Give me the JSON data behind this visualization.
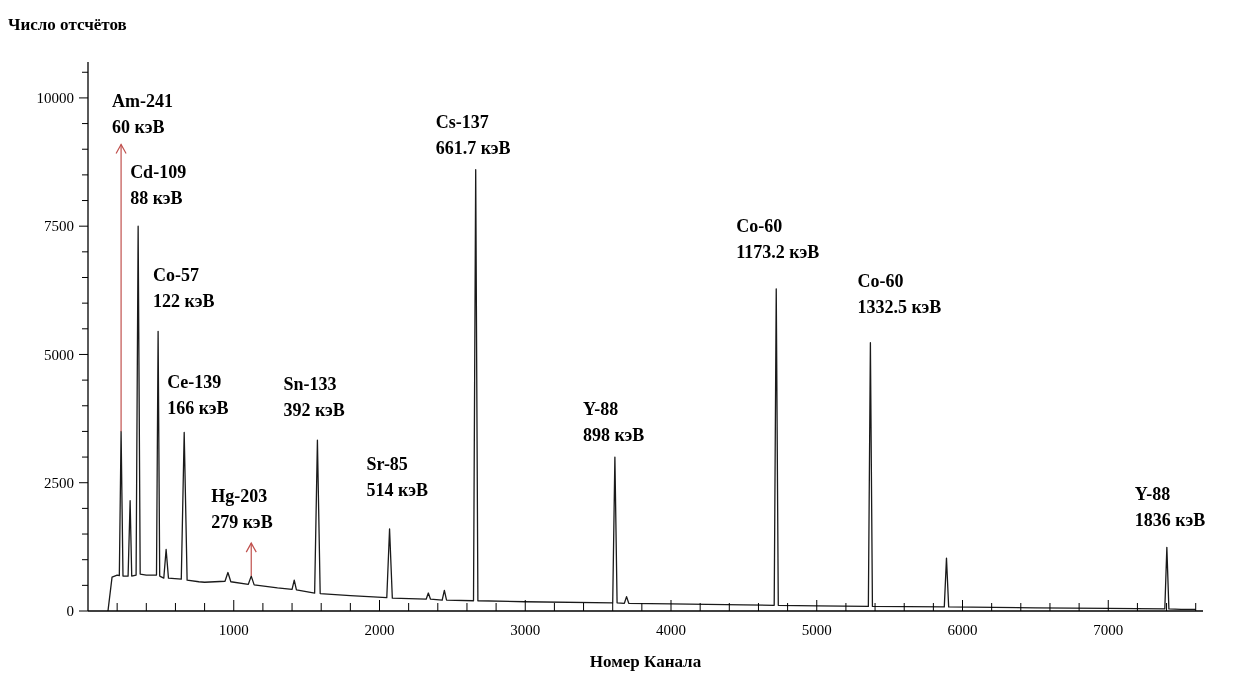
{
  "chart_data": {
    "type": "line",
    "ylabel": "Число отсчётов",
    "xlabel": "Номер Канала",
    "color": "#1a1a1a",
    "marker": "none",
    "line_style": "solid",
    "grid": false,
    "xlim": [
      0,
      7650
    ],
    "ylim": [
      0,
      10700
    ],
    "x": [
      137,
      165,
      200,
      215,
      227,
      240,
      275,
      289,
      300,
      330,
      344,
      358,
      400,
      470,
      481,
      492,
      520,
      536,
      552,
      640,
      660,
      680,
      760,
      800,
      940,
      960,
      980,
      1100,
      1120,
      1140,
      1300,
      1400,
      1415,
      1430,
      1555,
      1574,
      1593,
      1800,
      2050,
      2069,
      2088,
      2320,
      2335,
      2350,
      2430,
      2445,
      2460,
      2645,
      2660,
      2675,
      3000,
      3600,
      3615,
      3630,
      3680,
      3695,
      3710,
      4000,
      4500,
      4708,
      4722,
      4736,
      5000,
      5354,
      5368,
      5382,
      5875,
      5890,
      5905,
      6500,
      7000,
      7388,
      7402,
      7416,
      7500,
      7600
    ],
    "values": [
      0,
      660,
      700,
      690,
      3500,
      680,
      680,
      2150,
      680,
      700,
      7500,
      720,
      700,
      700,
      5450,
      680,
      640,
      1200,
      640,
      620,
      3480,
      600,
      570,
      560,
      580,
      750,
      570,
      520,
      680,
      510,
      450,
      420,
      600,
      410,
      350,
      3330,
      340,
      300,
      260,
      1600,
      250,
      230,
      350,
      230,
      210,
      400,
      210,
      200,
      8600,
      200,
      180,
      160,
      3000,
      160,
      150,
      280,
      150,
      140,
      120,
      110,
      6280,
      110,
      100,
      90,
      5230,
      90,
      80,
      1030,
      80,
      60,
      50,
      40,
      1240,
      40,
      30,
      30
    ],
    "xticks": [
      {
        "value": 200,
        "label": null
      },
      {
        "value": 400,
        "label": null
      },
      {
        "value": 600,
        "label": null
      },
      {
        "value": 800,
        "label": null
      },
      1000,
      {
        "value": 1200,
        "label": null
      },
      {
        "value": 1400,
        "label": null
      },
      {
        "value": 1600,
        "label": null
      },
      {
        "value": 1800,
        "label": null
      },
      2000,
      {
        "value": 2200,
        "label": null
      },
      {
        "value": 2400,
        "label": null
      },
      {
        "value": 2600,
        "label": null
      },
      {
        "value": 2800,
        "label": null
      },
      3000,
      {
        "value": 3200,
        "label": null
      },
      {
        "value": 3400,
        "label": null
      },
      {
        "value": 3600,
        "label": null
      },
      {
        "value": 3800,
        "label": null
      },
      4000,
      {
        "value": 4200,
        "label": null
      },
      {
        "value": 4400,
        "label": null
      },
      {
        "value": 4600,
        "label": null
      },
      {
        "value": 4800,
        "label": null
      },
      5000,
      {
        "value": 5200,
        "label": null
      },
      {
        "value": 5400,
        "label": null
      },
      {
        "value": 5600,
        "label": null
      },
      {
        "value": 5800,
        "label": null
      },
      6000,
      {
        "value": 6200,
        "label": null
      },
      {
        "value": 6400,
        "label": null
      },
      {
        "value": 6600,
        "label": null
      },
      {
        "value": 6800,
        "label": null
      },
      7000,
      {
        "value": 7200,
        "label": null
      },
      {
        "value": 7400,
        "label": null
      },
      {
        "value": 7600,
        "label": null
      }
    ],
    "yticks": [
      0,
      {
        "value": 500,
        "label": null
      },
      {
        "value": 1000,
        "label": null
      },
      {
        "value": 1500,
        "label": null
      },
      {
        "value": 2000,
        "label": null
      },
      2500,
      {
        "value": 3000,
        "label": null
      },
      {
        "value": 3500,
        "label": null
      },
      {
        "value": 4000,
        "label": null
      },
      {
        "value": 4500,
        "label": null
      },
      5000,
      {
        "value": 5500,
        "label": null
      },
      {
        "value": 6000,
        "label": null
      },
      {
        "value": 6500,
        "label": null
      },
      {
        "value": 7000,
        "label": null
      },
      7500,
      {
        "value": 8000,
        "label": null
      },
      {
        "value": 8500,
        "label": null
      },
      {
        "value": 9000,
        "label": null
      },
      {
        "value": 9500,
        "label": null
      },
      10000,
      {
        "value": 10500,
        "label": null
      }
    ],
    "annotations": [
      {
        "text": "Am-241\n60 кэВ",
        "x": 227,
        "y": 3500
      },
      {
        "text": "Cd-109\n88 кэВ",
        "x": 344,
        "y": 7500
      },
      {
        "text": "Co-57\n122 кэВ",
        "x": 481,
        "y": 5450
      },
      {
        "text": "Ce-139\n166 кэВ",
        "x": 660,
        "y": 3480
      },
      {
        "text": "Hg-203\n279 кэВ",
        "x": 1120,
        "y": 680
      },
      {
        "text": "Sn-133\n392 кэВ",
        "x": 1574,
        "y": 3330
      },
      {
        "text": "Sr-85\n514 кэВ",
        "x": 2069,
        "y": 1600
      },
      {
        "text": "Cs-137\n661.7 кэВ",
        "x": 2660,
        "y": 8600
      },
      {
        "text": "Y-88\n898 кэВ",
        "x": 3615,
        "y": 3000
      },
      {
        "text": "Co-60\n1173.2 кэВ",
        "x": 4722,
        "y": 6280
      },
      {
        "text": "Co-60\n1332.5 кэВ",
        "x": 5368,
        "y": 5230
      },
      {
        "text": "Y-88\n1836 кэВ",
        "x": 7402,
        "y": 1240
      }
    ]
  }
}
